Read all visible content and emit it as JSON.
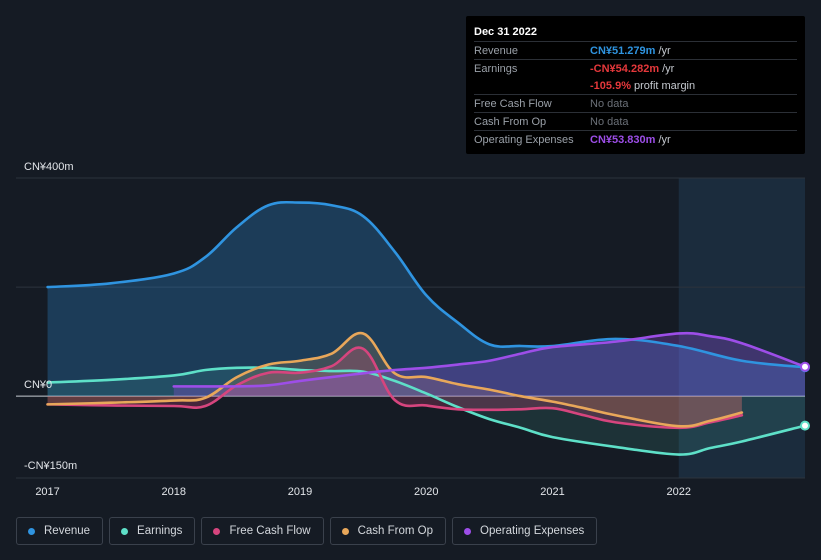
{
  "tooltip": {
    "date": "Dec 31 2022",
    "rows": [
      {
        "label": "Revenue",
        "value": "CN¥51.279m",
        "unit": "/yr",
        "color": "#2f94e0"
      },
      {
        "label": "Earnings",
        "value": "-CN¥54.282m",
        "unit": "/yr",
        "color": "#e5383b"
      },
      {
        "label": "",
        "value": "-105.9%",
        "unit": "profit margin",
        "color": "#e5383b"
      },
      {
        "label": "Free Cash Flow",
        "value": "No data",
        "unit": "",
        "color": "#6b7078"
      },
      {
        "label": "Cash From Op",
        "value": "No data",
        "unit": "",
        "color": "#6b7078"
      },
      {
        "label": "Operating Expenses",
        "value": "CN¥53.830m",
        "unit": "/yr",
        "color": "#9d4ee8"
      }
    ]
  },
  "legend": [
    {
      "label": "Revenue",
      "color": "#2f94e0"
    },
    {
      "label": "Earnings",
      "color": "#5ee0c8"
    },
    {
      "label": "Free Cash Flow",
      "color": "#d6457e"
    },
    {
      "label": "Cash From Op",
      "color": "#e8a75a"
    },
    {
      "label": "Operating Expenses",
      "color": "#9d4ee8"
    }
  ],
  "chart_data": {
    "type": "area",
    "y_tick_labels": [
      "CN¥400m",
      "CN¥0",
      "-CN¥150m"
    ],
    "x_tick_labels": [
      "2017",
      "2018",
      "2019",
      "2020",
      "2021",
      "2022"
    ],
    "x_ticks": [
      2017,
      2018,
      2019,
      2020,
      2021,
      2022
    ],
    "xlim": [
      2016.75,
      2023.0
    ],
    "ylim": [
      -150,
      400
    ],
    "y_gridlines": [
      400,
      200,
      0,
      -150
    ],
    "highlight_start": 2022.0,
    "series": [
      {
        "name": "Revenue",
        "color": "#2f94e0",
        "x": [
          2017.0,
          2017.5,
          2018.0,
          2018.25,
          2018.5,
          2018.75,
          2019.0,
          2019.25,
          2019.5,
          2019.75,
          2020.0,
          2020.25,
          2020.5,
          2020.75,
          2021.0,
          2021.5,
          2022.0,
          2022.5,
          2023.0
        ],
        "y": [
          200,
          207,
          225,
          255,
          310,
          350,
          355,
          350,
          330,
          265,
          185,
          135,
          95,
          92,
          92,
          105,
          92,
          65,
          53
        ]
      },
      {
        "name": "Earnings",
        "color": "#5ee0c8",
        "x": [
          2017.0,
          2017.5,
          2018.0,
          2018.25,
          2018.5,
          2018.75,
          2019.0,
          2019.25,
          2019.5,
          2019.75,
          2020.0,
          2020.25,
          2020.5,
          2020.75,
          2021.0,
          2021.5,
          2022.0,
          2022.25,
          2022.5,
          2023.0
        ],
        "y": [
          25,
          30,
          38,
          48,
          52,
          52,
          48,
          46,
          45,
          28,
          5,
          -20,
          -42,
          -58,
          -75,
          -93,
          -107,
          -95,
          -83,
          -54
        ]
      },
      {
        "name": "Free Cash Flow",
        "color": "#d6457e",
        "x": [
          2017.0,
          2017.5,
          2018.0,
          2018.25,
          2018.5,
          2018.75,
          2019.0,
          2019.25,
          2019.5,
          2019.75,
          2020.0,
          2020.25,
          2020.5,
          2020.75,
          2021.0,
          2021.25,
          2021.5,
          2022.0,
          2022.25,
          2022.5
        ],
        "y": [
          -15,
          -17,
          -18,
          -18,
          20,
          43,
          43,
          55,
          87,
          -7,
          -17,
          -24,
          -25,
          -24,
          -22,
          -35,
          -48,
          -58,
          -48,
          -35
        ]
      },
      {
        "name": "Cash From Op",
        "color": "#e8a75a",
        "x": [
          2017.0,
          2017.5,
          2018.0,
          2018.25,
          2018.5,
          2018.75,
          2019.0,
          2019.25,
          2019.5,
          2019.75,
          2020.0,
          2020.25,
          2020.5,
          2020.75,
          2021.0,
          2021.25,
          2021.5,
          2022.0,
          2022.25,
          2022.5
        ],
        "y": [
          -15,
          -12,
          -8,
          -3,
          35,
          58,
          65,
          78,
          115,
          42,
          35,
          22,
          12,
          0,
          -10,
          -22,
          -35,
          -55,
          -45,
          -30
        ]
      },
      {
        "name": "Operating Expenses",
        "color": "#9d4ee8",
        "x": [
          2018.0,
          2018.5,
          2018.75,
          2019.0,
          2019.25,
          2019.5,
          2019.75,
          2020.0,
          2020.25,
          2020.5,
          2020.75,
          2021.0,
          2021.5,
          2022.0,
          2022.25,
          2022.5,
          2023.0
        ],
        "y": [
          18,
          18,
          20,
          28,
          35,
          42,
          48,
          52,
          58,
          65,
          78,
          90,
          100,
          115,
          110,
          97,
          54
        ]
      }
    ]
  }
}
